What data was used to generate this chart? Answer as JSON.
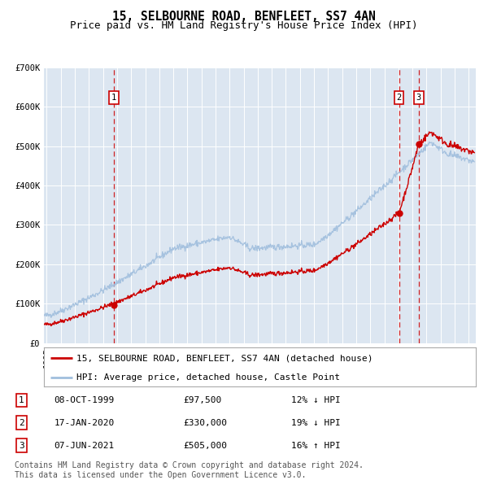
{
  "title": "15, SELBOURNE ROAD, BENFLEET, SS7 4AN",
  "subtitle": "Price paid vs. HM Land Registry's House Price Index (HPI)",
  "background_color": "#dce6f1",
  "fig_bg_color": "#ffffff",
  "ylim": [
    0,
    700000
  ],
  "yticks": [
    0,
    100000,
    200000,
    300000,
    400000,
    500000,
    600000,
    700000
  ],
  "ytick_labels": [
    "£0",
    "£100K",
    "£200K",
    "£300K",
    "£400K",
    "£500K",
    "£600K",
    "£700K"
  ],
  "xlim_start": 1994.8,
  "xlim_end": 2025.5,
  "sale_dates": [
    1999.77,
    2020.04,
    2021.44
  ],
  "sale_prices": [
    97500,
    330000,
    505000
  ],
  "sale_labels": [
    "1",
    "2",
    "3"
  ],
  "vline_color": "#cc0000",
  "sale_dot_color": "#cc0000",
  "red_line_color": "#cc0000",
  "blue_line_color": "#a0bedd",
  "legend_entries": [
    "15, SELBOURNE ROAD, BENFLEET, SS7 4AN (detached house)",
    "HPI: Average price, detached house, Castle Point"
  ],
  "table_rows": [
    [
      "1",
      "08-OCT-1999",
      "£97,500",
      "12% ↓ HPI"
    ],
    [
      "2",
      "17-JAN-2020",
      "£330,000",
      "19% ↓ HPI"
    ],
    [
      "3",
      "07-JUN-2021",
      "£505,000",
      "16% ↑ HPI"
    ]
  ],
  "footnote": "Contains HM Land Registry data © Crown copyright and database right 2024.\nThis data is licensed under the Open Government Licence v3.0.",
  "title_fontsize": 10.5,
  "subtitle_fontsize": 9,
  "tick_fontsize": 7.5,
  "legend_fontsize": 8,
  "table_fontsize": 8,
  "footnote_fontsize": 7
}
